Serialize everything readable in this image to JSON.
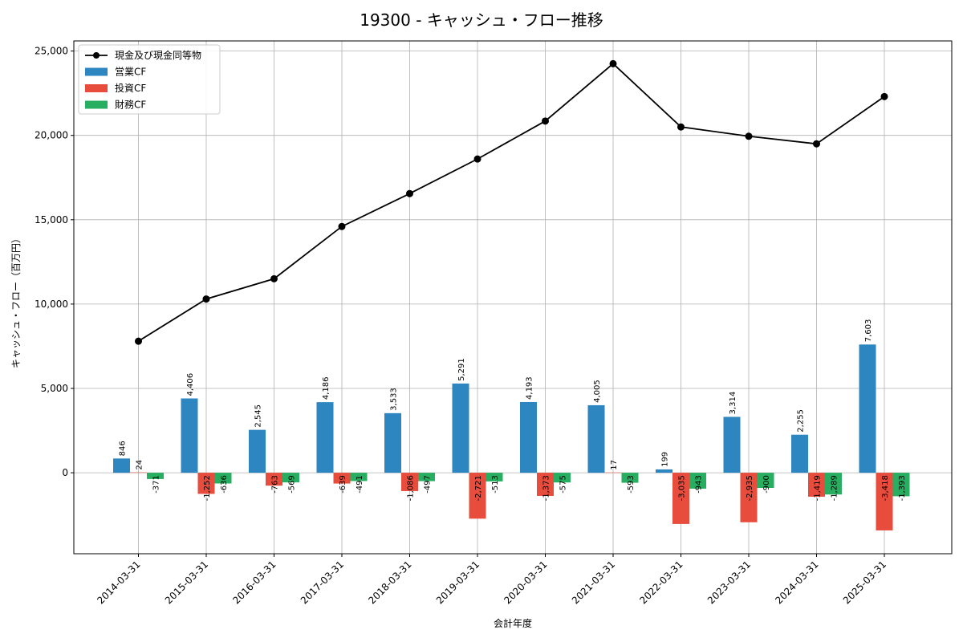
{
  "chart_data": {
    "type": "bar",
    "title": "19300 - キャッシュ・フロー推移",
    "xlabel": "会計年度",
    "ylabel": "キャッシュ・フロー（百万円）",
    "ylim": [
      -4800,
      25600
    ],
    "yticks": [
      0,
      5000,
      10000,
      15000,
      20000,
      25000
    ],
    "ytick_labels": [
      "0",
      "5,000",
      "10,000",
      "15,000",
      "20,000",
      "25,000"
    ],
    "grid": true,
    "legend_position": "top-left",
    "categories": [
      "2014-03-31",
      "2015-03-31",
      "2016-03-31",
      "2017-03-31",
      "2018-03-31",
      "2019-03-31",
      "2020-03-31",
      "2021-03-31",
      "2022-03-31",
      "2023-03-31",
      "2024-03-31",
      "2025-03-31"
    ],
    "series": [
      {
        "name": "営業CF",
        "kind": "bar",
        "color": "#2e86c1",
        "values": [
          846,
          4406,
          2545,
          4186,
          3533,
          5291,
          4193,
          4005,
          199,
          3314,
          2255,
          7603
        ],
        "labels": [
          "846",
          "4,406",
          "2,545",
          "4,186",
          "3,533",
          "5,291",
          "4,193",
          "4,005",
          "199",
          "3,314",
          "2,255",
          "7,603"
        ]
      },
      {
        "name": "投資CF",
        "kind": "bar",
        "color": "#e74c3c",
        "values": [
          24,
          -1252,
          -763,
          -639,
          -1086,
          -2721,
          -1373,
          17,
          -3035,
          -2935,
          -1419,
          -3418
        ],
        "labels": [
          "24",
          "-1,252",
          "-763",
          "-639",
          "-1,086",
          "-2,721",
          "-1,373",
          "17",
          "-3,035",
          "-2,935",
          "-1,419",
          "-3,418"
        ]
      },
      {
        "name": "財務CF",
        "kind": "bar",
        "color": "#27ae60",
        "values": [
          -371,
          -636,
          -569,
          -491,
          -497,
          -513,
          -575,
          -593,
          -943,
          -900,
          -1289,
          -1393
        ],
        "labels": [
          "-371",
          "-636",
          "-569",
          "-491",
          "-497",
          "-513",
          "-575",
          "-593",
          "-943",
          "-900",
          "-1,289",
          "-1,393"
        ]
      },
      {
        "name": "現金及び現金同等物",
        "kind": "line",
        "color": "#000000",
        "values": [
          7800,
          10300,
          11500,
          14600,
          16550,
          18600,
          20850,
          24250,
          20500,
          19950,
          19500,
          22300
        ]
      }
    ]
  }
}
